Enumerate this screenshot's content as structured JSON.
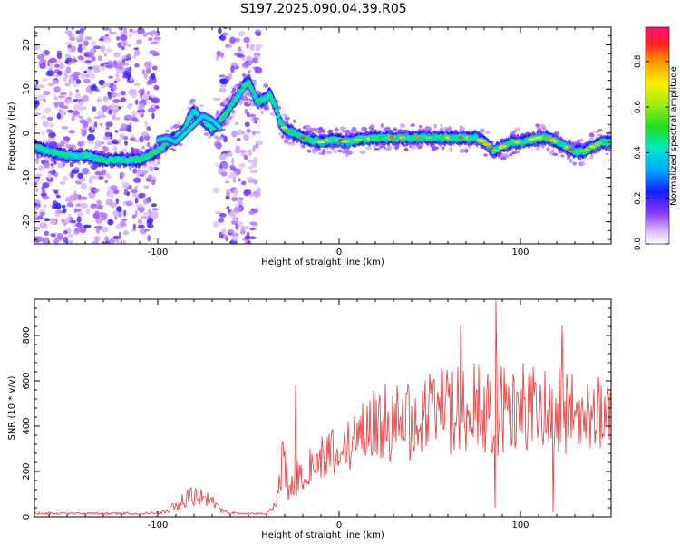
{
  "title": "S197.2025.090.04.39.R05",
  "chart_data": [
    {
      "type": "heatmap",
      "xlabel": "Height of straight line (km)",
      "ylabel": "Frequency (Hz)",
      "xlim": [
        -168,
        150
      ],
      "ylim": [
        -25,
        24
      ],
      "x_ticks": [
        -100,
        0,
        100
      ],
      "y_ticks": [
        -20,
        -10,
        0,
        10,
        20
      ],
      "colorbar": {
        "label": "Normalized spectral amplitude",
        "range": [
          0,
          0.95
        ],
        "ticks": [
          0.0,
          0.2,
          0.4,
          0.6,
          0.8
        ],
        "tick_labels": [
          "0.0",
          "0.2",
          "0.4",
          "0.6",
          "0.8"
        ]
      },
      "ridge": {
        "x": [
          -168,
          -160,
          -150,
          -140,
          -130,
          -120,
          -115,
          -110,
          -105,
          -100,
          -95,
          -90,
          -85,
          -82,
          -80,
          -75,
          -70,
          -65,
          -60,
          -55,
          -52,
          -50,
          -45,
          -40,
          -38,
          -35,
          -33,
          -30,
          -25,
          -20,
          -15,
          -10,
          -5,
          0,
          5,
          10,
          20,
          30,
          40,
          50,
          60,
          70,
          75,
          80,
          83,
          85,
          90,
          95,
          100,
          105,
          110,
          115,
          120,
          125,
          130,
          135,
          140,
          145,
          148
        ],
        "freq": [
          -3,
          -4,
          -5,
          -5,
          -6,
          -6,
          -6,
          -6,
          -5,
          -4,
          -2,
          -1,
          1,
          4,
          5,
          3,
          1,
          3,
          6,
          9,
          11,
          12,
          7,
          8,
          9,
          6,
          3,
          1,
          0,
          -1,
          -1.5,
          -2,
          -1.5,
          -1.5,
          -2,
          -1.5,
          -1,
          -1,
          -1,
          -1,
          -1,
          -1,
          -1,
          -2,
          -3,
          -4,
          -3,
          -2,
          -2,
          -1.5,
          -1,
          -1,
          -2,
          -3,
          -4,
          -4,
          -3,
          -2,
          -2
        ]
      },
      "secondary_ridge": {
        "x": [
          -100,
          -95,
          -90,
          -85,
          -80,
          -75,
          -70,
          -65
        ],
        "freq": [
          -1.5,
          -1,
          -2,
          0,
          2,
          4,
          3,
          1
        ]
      }
    },
    {
      "type": "line",
      "xlabel": "Height of straight line (km)",
      "ylabel": "SNR (10 * v/v)",
      "xlim": [
        -168,
        150
      ],
      "ylim": [
        0,
        960
      ],
      "x_ticks": [
        -100,
        0,
        100
      ],
      "y_ticks": [
        0,
        200,
        400,
        600,
        800
      ],
      "color": "#ee3333",
      "envelope": {
        "x": [
          -168,
          -120,
          -110,
          -100,
          -95,
          -90,
          -85,
          -80,
          -75,
          -70,
          -65,
          -60,
          -50,
          -40,
          -35,
          -32,
          -30,
          -28,
          -25,
          -20,
          -15,
          -10,
          -5,
          0,
          5,
          10,
          15,
          20,
          30,
          40,
          50,
          60,
          70,
          80,
          85,
          90,
          100,
          110,
          115,
          120,
          125,
          130,
          140,
          145,
          150
        ],
        "mean": [
          15,
          15,
          15,
          18,
          25,
          50,
          80,
          90,
          85,
          60,
          30,
          18,
          15,
          15,
          60,
          200,
          250,
          120,
          150,
          200,
          240,
          260,
          270,
          280,
          330,
          360,
          380,
          400,
          420,
          440,
          450,
          460,
          470,
          470,
          480,
          470,
          480,
          480,
          470,
          470,
          460,
          460,
          460,
          460,
          460
        ],
        "spread": [
          8,
          8,
          8,
          10,
          15,
          40,
          60,
          70,
          60,
          50,
          20,
          8,
          8,
          8,
          40,
          200,
          230,
          80,
          120,
          140,
          150,
          160,
          170,
          180,
          200,
          220,
          230,
          260,
          280,
          300,
          300,
          320,
          330,
          340,
          340,
          330,
          330,
          320,
          310,
          300,
          290,
          280,
          260,
          240,
          220
        ]
      },
      "peaks": [
        {
          "x": 86.5,
          "y": 955
        },
        {
          "x": 67,
          "y": 845
        },
        {
          "x": 123,
          "y": 845
        },
        {
          "x": -24,
          "y": 580
        },
        {
          "x": 118,
          "y": 20
        },
        {
          "x": 86,
          "y": 40
        }
      ]
    }
  ],
  "colors": {
    "background": "#ffffff",
    "line": "#ee3333",
    "axis": "#000000"
  }
}
